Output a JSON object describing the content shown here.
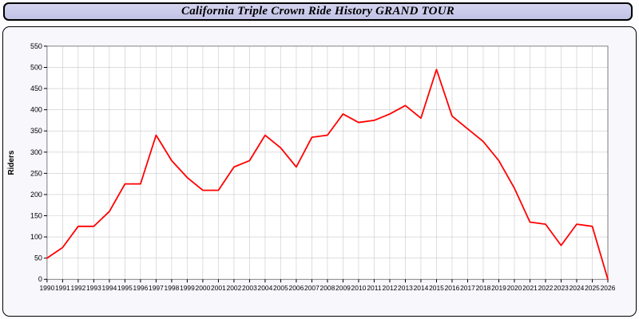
{
  "header": {
    "title": "California Triple Crown Ride History GRAND TOUR"
  },
  "colors": {
    "line": "#ff0000",
    "title_bar_bg": "#c9c9e8",
    "plot_bg": "#ffffff",
    "grid": "#c9c9c9",
    "axis": "#000000",
    "frame_bg": "#f7f7fc"
  },
  "chart_data": {
    "type": "line",
    "title": "California Triple Crown Ride History GRAND TOUR",
    "xlabel": "",
    "ylabel": "Riders",
    "ylim": [
      0,
      550
    ],
    "ytick_step": 50,
    "grid": true,
    "legend_position": "none",
    "x": [
      1990,
      1991,
      1992,
      1993,
      1994,
      1995,
      1996,
      1997,
      1998,
      1999,
      2000,
      2001,
      2002,
      2003,
      2004,
      2005,
      2006,
      2007,
      2008,
      2009,
      2010,
      2011,
      2012,
      2013,
      2014,
      2015,
      2016,
      2017,
      2018,
      2019,
      2020,
      2021,
      2022,
      2023,
      2024,
      2025,
      2026
    ],
    "series": [
      {
        "name": "Riders",
        "color": "#ff0000",
        "values": [
          50,
          75,
          125,
          125,
          160,
          225,
          225,
          340,
          280,
          240,
          210,
          210,
          265,
          280,
          340,
          310,
          265,
          335,
          340,
          390,
          370,
          375,
          390,
          410,
          380,
          495,
          385,
          355,
          325,
          280,
          215,
          135,
          130,
          80,
          130,
          125,
          0
        ]
      }
    ]
  }
}
